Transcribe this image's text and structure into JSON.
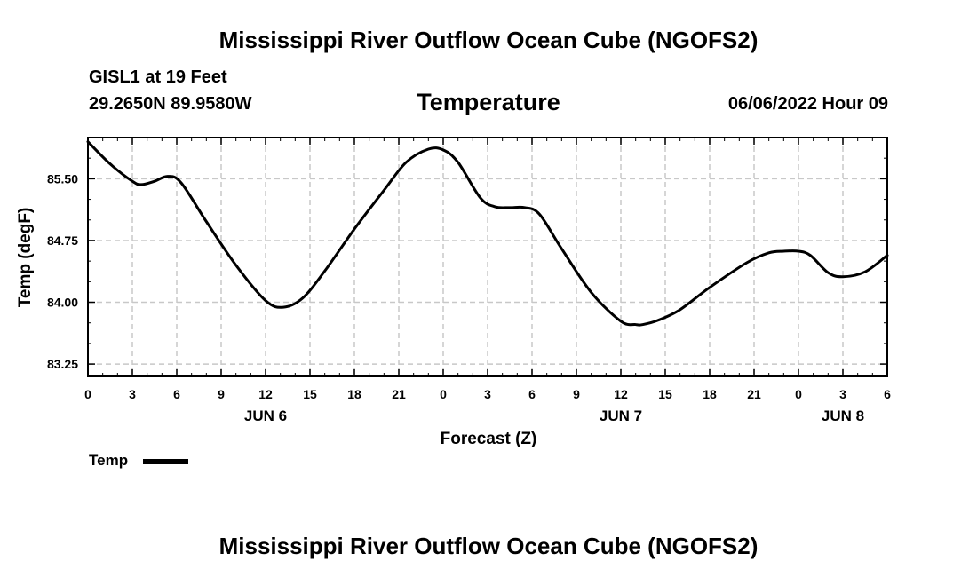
{
  "header": {
    "title": "Mississippi River Outflow Ocean Cube (NGOFS2)",
    "station": "GISL1 at 19 Feet",
    "coords": "29.2650N  89.9580W",
    "datetime": "06/06/2022 Hour 09"
  },
  "footer": {
    "title": "Mississippi River Outflow Ocean Cube (NGOFS2)"
  },
  "legend": {
    "label": "Temp",
    "color": "#000000"
  },
  "chart_data": {
    "type": "line",
    "title": "Temperature",
    "xlabel": "Forecast (Z)",
    "ylabel": "Temp (degF)",
    "xlim": [
      0,
      54
    ],
    "ylim": [
      83.1,
      86.0
    ],
    "grid": true,
    "yticks": [
      83.25,
      84.0,
      84.75,
      85.5
    ],
    "ytick_labels": [
      "83.25",
      "84.00",
      "84.75",
      "85.50"
    ],
    "xticks": [
      0,
      3,
      6,
      9,
      12,
      15,
      18,
      21,
      24,
      27,
      30,
      33,
      36,
      39,
      42,
      45,
      48,
      51,
      54
    ],
    "xtick_labels": [
      "0",
      "3",
      "6",
      "9",
      "12",
      "15",
      "18",
      "21",
      "0",
      "3",
      "6",
      "9",
      "12",
      "15",
      "18",
      "21",
      "0",
      "3",
      "6"
    ],
    "day_labels": [
      {
        "x": 12,
        "label": "JUN 6"
      },
      {
        "x": 36,
        "label": "JUN 7"
      },
      {
        "x": 51,
        "label": "JUN 8"
      }
    ],
    "series": [
      {
        "name": "Temp",
        "color": "#000000",
        "x": [
          0,
          1.5,
          3,
          3.6,
          4.5,
          5.4,
          6.3,
          8,
          10,
          12,
          13.2,
          14.5,
          16,
          18,
          20,
          21.5,
          23,
          24,
          25,
          26.5,
          27.5,
          28.5,
          29.5,
          30.5,
          32,
          34,
          36,
          37,
          37.5,
          38.5,
          40,
          42,
          44.5,
          46,
          47,
          48,
          48.8,
          50,
          51,
          52.5,
          54
        ],
        "values": [
          85.95,
          85.68,
          85.47,
          85.43,
          85.47,
          85.53,
          85.45,
          84.98,
          84.45,
          84.02,
          83.94,
          84.05,
          84.38,
          84.89,
          85.36,
          85.7,
          85.86,
          85.85,
          85.7,
          85.27,
          85.16,
          85.15,
          85.15,
          85.07,
          84.65,
          84.12,
          83.77,
          83.73,
          83.73,
          83.78,
          83.91,
          84.18,
          84.48,
          84.6,
          84.62,
          84.62,
          84.57,
          84.36,
          84.31,
          84.37,
          84.57
        ]
      }
    ]
  }
}
